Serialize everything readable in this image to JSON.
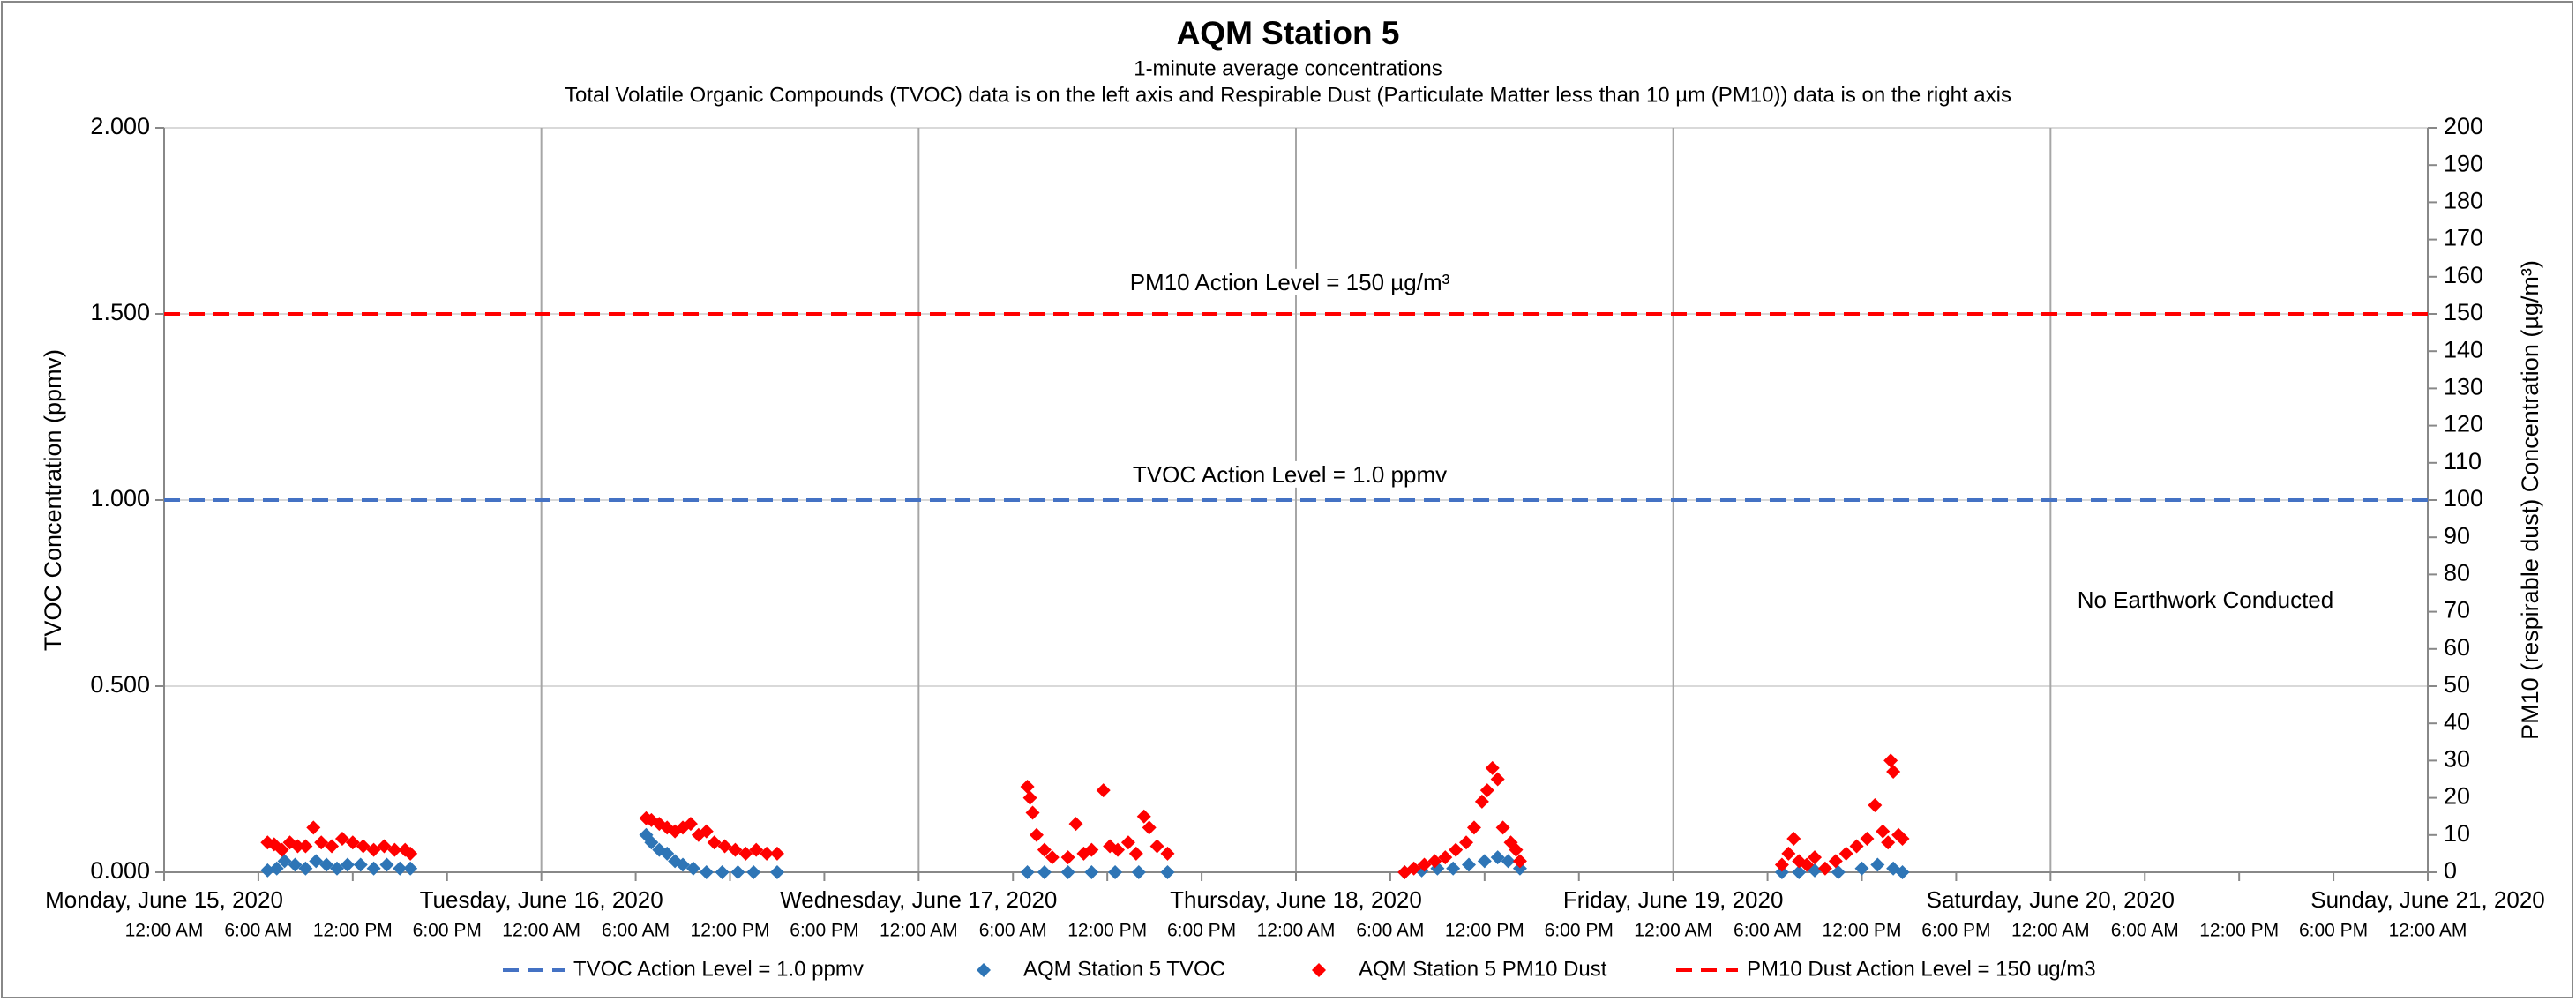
{
  "chart_data": {
    "type": "scatter",
    "title": "AQM Station 5",
    "subtitle": "1-minute average concentrations",
    "subtitle2": "Total Volatile Organic Compounds (TVOC) data is on the left axis and Respirable Dust (Particulate Matter less than 10 µm (PM10)) data is on the right axis",
    "y_label": "TVOC Concentration (ppmv)",
    "y2_label": "PM10 (respirable dust) Concentration (µg/m³)",
    "annotations": [
      "PM10 Action Level = 150 µg/m³",
      "TVOC Action Level = 1.0 ppmv",
      "No Earthwork Conducted"
    ],
    "grid": true,
    "legend": "bottom",
    "xlim": [
      "2020-06-15T00:00",
      "2020-06-21T00:00"
    ],
    "xticks": [
      {
        "value": "2020-06-15T00:00",
        "label": "12:00 AM"
      },
      {
        "value": "2020-06-15T06:00",
        "label": "6:00 AM"
      },
      {
        "value": "2020-06-15T12:00",
        "label": "12:00 PM"
      },
      {
        "value": "2020-06-15T18:00",
        "label": "6:00 PM"
      },
      {
        "value": "2020-06-16T00:00",
        "label": "12:00 AM"
      },
      {
        "value": "2020-06-16T06:00",
        "label": "6:00 AM"
      },
      {
        "value": "2020-06-16T12:00",
        "label": "12:00 PM"
      },
      {
        "value": "2020-06-16T18:00",
        "label": "6:00 PM"
      },
      {
        "value": "2020-06-17T00:00",
        "label": "12:00 AM"
      },
      {
        "value": "2020-06-17T06:00",
        "label": "6:00 AM"
      },
      {
        "value": "2020-06-17T12:00",
        "label": "12:00 PM"
      },
      {
        "value": "2020-06-17T18:00",
        "label": "6:00 PM"
      },
      {
        "value": "2020-06-18T00:00",
        "label": "12:00 AM"
      },
      {
        "value": "2020-06-18T06:00",
        "label": "6:00 AM"
      },
      {
        "value": "2020-06-18T12:00",
        "label": "12:00 PM"
      },
      {
        "value": "2020-06-18T18:00",
        "label": "6:00 PM"
      },
      {
        "value": "2020-06-19T00:00",
        "label": "12:00 AM"
      },
      {
        "value": "2020-06-19T06:00",
        "label": "6:00 AM"
      },
      {
        "value": "2020-06-19T12:00",
        "label": "12:00 PM"
      },
      {
        "value": "2020-06-19T18:00",
        "label": "6:00 PM"
      },
      {
        "value": "2020-06-20T00:00",
        "label": "12:00 AM"
      },
      {
        "value": "2020-06-20T06:00",
        "label": "6:00 AM"
      },
      {
        "value": "2020-06-20T12:00",
        "label": "12:00 PM"
      },
      {
        "value": "2020-06-20T18:00",
        "label": "6:00 PM"
      },
      {
        "value": "2020-06-21T00:00",
        "label": "12:00 AM"
      }
    ],
    "x_day_ticks": [
      {
        "value": "2020-06-15T00:00",
        "label": "Monday, June 15, 2020"
      },
      {
        "value": "2020-06-16T00:00",
        "label": "Tuesday, June 16, 2020"
      },
      {
        "value": "2020-06-17T00:00",
        "label": "Wednesday, June 17, 2020"
      },
      {
        "value": "2020-06-18T00:00",
        "label": "Thursday, June 18, 2020"
      },
      {
        "value": "2020-06-19T00:00",
        "label": "Friday, June 19, 2020"
      },
      {
        "value": "2020-06-20T00:00",
        "label": "Saturday, June 20, 2020"
      },
      {
        "value": "2020-06-21T00:00",
        "label": "Sunday, June 21, 2020"
      }
    ],
    "ylim": [
      0,
      2
    ],
    "yticks": [
      {
        "value": 0,
        "label": "0.000"
      },
      {
        "value": 0.5,
        "label": "0.500"
      },
      {
        "value": 1,
        "label": "1.000"
      },
      {
        "value": 1.5,
        "label": "1.500"
      },
      {
        "value": 2,
        "label": "2.000"
      }
    ],
    "y2lim": [
      0,
      200
    ],
    "y2ticks": [
      0,
      10,
      20,
      30,
      40,
      50,
      60,
      70,
      80,
      90,
      100,
      110,
      120,
      130,
      140,
      150,
      160,
      170,
      180,
      190,
      200
    ],
    "series": [
      {
        "name": "TVOC Action Level = 1.0 ppmv",
        "kind": "hline",
        "line_style": "dashed",
        "color": "#4472c4",
        "value": 1.0
      },
      {
        "name": "AQM Station 5 TVOC",
        "kind": "scatter",
        "color": "#2e75b6",
        "x": [
          "2020-06-15T06:35",
          "2020-06-15T07:10",
          "2020-06-15T07:40",
          "2020-06-15T08:20",
          "2020-06-15T09:00",
          "2020-06-15T09:40",
          "2020-06-15T10:20",
          "2020-06-15T11:00",
          "2020-06-15T11:40",
          "2020-06-15T12:30",
          "2020-06-15T13:20",
          "2020-06-15T14:10",
          "2020-06-15T15:00",
          "2020-06-15T15:40",
          "2020-06-16T06:40",
          "2020-06-16T07:00",
          "2020-06-16T07:30",
          "2020-06-16T08:00",
          "2020-06-16T08:30",
          "2020-06-16T09:00",
          "2020-06-16T09:40",
          "2020-06-16T10:30",
          "2020-06-16T11:30",
          "2020-06-16T12:30",
          "2020-06-16T13:30",
          "2020-06-16T15:00",
          "2020-06-17T06:55",
          "2020-06-17T08:00",
          "2020-06-17T09:30",
          "2020-06-17T11:00",
          "2020-06-17T12:30",
          "2020-06-17T14:00",
          "2020-06-17T15:50",
          "2020-06-18T06:55",
          "2020-06-18T08:00",
          "2020-06-18T09:00",
          "2020-06-18T10:00",
          "2020-06-18T11:00",
          "2020-06-18T12:00",
          "2020-06-18T12:50",
          "2020-06-18T13:30",
          "2020-06-18T14:15",
          "2020-06-19T06:55",
          "2020-06-19T08:00",
          "2020-06-19T09:00",
          "2020-06-19T10:30",
          "2020-06-19T12:00",
          "2020-06-19T13:00",
          "2020-06-19T14:00",
          "2020-06-19T14:35"
        ],
        "values": [
          0.005,
          0.01,
          0.03,
          0.02,
          0.01,
          0.03,
          0.02,
          0.01,
          0.02,
          0.02,
          0.01,
          0.02,
          0.01,
          0.01,
          0.1,
          0.08,
          0.06,
          0.05,
          0.03,
          0.02,
          0.01,
          0,
          0,
          0,
          0,
          0,
          0,
          0,
          0,
          0,
          0,
          0,
          0,
          0,
          0.005,
          0.01,
          0.01,
          0.02,
          0.03,
          0.04,
          0.03,
          0.01,
          0,
          0,
          0.005,
          0,
          0.01,
          0.02,
          0.01,
          0
        ]
      },
      {
        "name": "AQM Station 5 PM10 Dust",
        "kind": "scatter",
        "axis": "y2",
        "color": "#ff0000",
        "x": [
          "2020-06-15T06:35",
          "2020-06-15T07:00",
          "2020-06-15T07:30",
          "2020-06-15T08:00",
          "2020-06-15T08:30",
          "2020-06-15T09:00",
          "2020-06-15T09:30",
          "2020-06-15T10:00",
          "2020-06-15T10:40",
          "2020-06-15T11:20",
          "2020-06-15T12:00",
          "2020-06-15T12:40",
          "2020-06-15T13:20",
          "2020-06-15T14:00",
          "2020-06-15T14:40",
          "2020-06-15T15:20",
          "2020-06-15T15:40",
          "2020-06-16T06:40",
          "2020-06-16T07:00",
          "2020-06-16T07:30",
          "2020-06-16T08:00",
          "2020-06-16T08:30",
          "2020-06-16T09:00",
          "2020-06-16T09:30",
          "2020-06-16T10:00",
          "2020-06-16T10:30",
          "2020-06-16T11:00",
          "2020-06-16T11:40",
          "2020-06-16T12:20",
          "2020-06-16T13:00",
          "2020-06-16T13:40",
          "2020-06-16T14:20",
          "2020-06-16T15:00",
          "2020-06-17T06:55",
          "2020-06-17T07:05",
          "2020-06-17T07:15",
          "2020-06-17T07:30",
          "2020-06-17T08:00",
          "2020-06-17T08:30",
          "2020-06-17T09:30",
          "2020-06-17T10:00",
          "2020-06-17T10:30",
          "2020-06-17T11:00",
          "2020-06-17T11:45",
          "2020-06-17T12:10",
          "2020-06-17T12:40",
          "2020-06-17T13:20",
          "2020-06-17T13:50",
          "2020-06-17T14:20",
          "2020-06-17T14:40",
          "2020-06-17T15:10",
          "2020-06-17T15:50",
          "2020-06-18T06:55",
          "2020-06-18T07:30",
          "2020-06-18T08:10",
          "2020-06-18T08:50",
          "2020-06-18T09:30",
          "2020-06-18T10:10",
          "2020-06-18T10:50",
          "2020-06-18T11:20",
          "2020-06-18T11:50",
          "2020-06-18T12:10",
          "2020-06-18T12:30",
          "2020-06-18T12:50",
          "2020-06-18T13:10",
          "2020-06-18T13:40",
          "2020-06-18T14:00",
          "2020-06-18T14:15",
          "2020-06-19T06:55",
          "2020-06-19T07:20",
          "2020-06-19T07:40",
          "2020-06-19T08:00",
          "2020-06-19T08:30",
          "2020-06-19T09:00",
          "2020-06-19T09:40",
          "2020-06-19T10:20",
          "2020-06-19T11:00",
          "2020-06-19T11:40",
          "2020-06-19T12:20",
          "2020-06-19T12:50",
          "2020-06-19T13:20",
          "2020-06-19T13:40",
          "2020-06-19T13:50",
          "2020-06-19T14:00",
          "2020-06-19T14:20",
          "2020-06-19T14:35"
        ],
        "values": [
          8,
          7.5,
          6,
          8,
          7,
          7,
          12,
          8,
          7,
          9,
          8,
          7,
          6,
          7,
          6,
          6,
          5,
          14.5,
          14,
          13,
          12,
          11,
          12,
          13,
          10,
          11,
          8,
          7,
          6,
          5,
          6,
          5,
          5,
          23,
          20,
          16,
          10,
          6,
          4,
          4,
          13,
          5,
          6,
          22,
          7,
          6,
          8,
          5,
          15,
          12,
          7,
          5,
          0,
          1,
          2,
          3,
          4,
          6,
          8,
          12,
          19,
          22,
          28,
          25,
          12,
          8,
          6,
          3,
          2,
          5,
          9,
          3,
          2,
          4,
          1,
          3,
          5,
          7,
          9,
          18,
          11,
          8,
          30,
          27,
          10,
          9
        ]
      },
      {
        "name": "PM10 Dust Action Level = 150 ug/m3",
        "kind": "hline",
        "line_style": "dashed",
        "axis": "y2",
        "color": "#ff0000",
        "value": 150
      }
    ]
  }
}
